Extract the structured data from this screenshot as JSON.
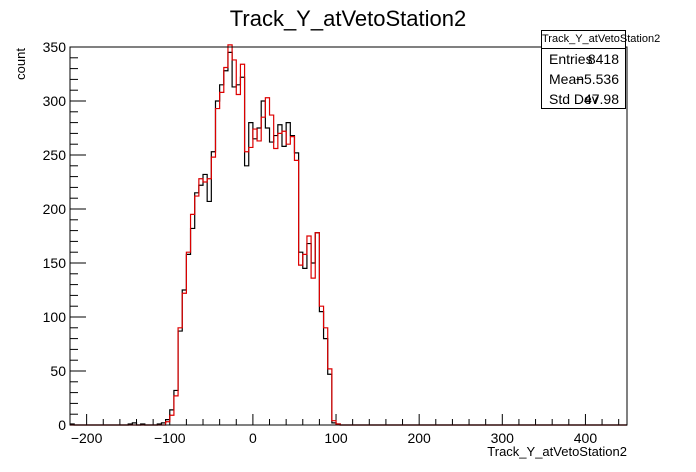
{
  "chart_data": {
    "type": "histogram",
    "title": "Track_Y_atVetoStation2",
    "xlabel": "Track_Y_atVetoStation2",
    "ylabel": "count",
    "xlim": [
      -220,
      450
    ],
    "ylim": [
      0,
      350
    ],
    "xticks": [
      -200,
      -100,
      0,
      100,
      200,
      300,
      400
    ],
    "yticks": [
      0,
      50,
      100,
      150,
      200,
      250,
      300,
      350
    ],
    "bin_start": -220,
    "bin_width": 5,
    "grid": false,
    "legend": "none",
    "stats": {
      "title": "Track_Y_atVetoStation2",
      "rows": [
        {
          "label": "Entries",
          "value": "8418"
        },
        {
          "label": "Mean",
          "value": "−5.536"
        },
        {
          "label": "Std Dev",
          "value": "47.98"
        }
      ]
    },
    "series": [
      {
        "color": "#000000",
        "values": [
          1,
          0,
          0,
          0,
          0,
          0,
          0,
          0,
          0,
          0,
          0,
          0,
          0,
          0,
          1,
          2,
          0,
          1,
          0,
          0,
          0,
          1,
          2,
          5,
          14,
          32,
          87,
          125,
          158,
          182,
          215,
          222,
          232,
          207,
          253,
          300,
          315,
          328,
          345,
          313,
          315,
          322,
          240,
          280,
          265,
          275,
          300,
          275,
          262,
          268,
          278,
          258,
          280,
          268,
          252,
          160,
          145,
          168,
          150,
          178,
          105,
          80,
          47,
          2,
          1,
          0,
          0,
          0,
          0,
          0,
          0,
          0,
          0,
          0,
          0,
          0,
          0,
          0,
          0,
          0,
          0,
          0,
          0,
          0,
          0,
          0,
          0,
          0,
          0,
          0,
          0,
          0,
          0,
          0,
          0,
          0,
          0,
          0,
          0,
          0,
          0,
          0,
          0,
          0,
          0,
          0,
          0,
          0,
          0,
          0,
          0,
          0,
          0,
          0,
          0,
          0,
          0,
          0,
          0,
          0,
          0,
          0,
          0,
          0,
          0,
          0,
          0,
          0,
          0,
          0,
          0,
          0,
          0,
          0
        ]
      },
      {
        "color": "#dd0000",
        "values": [
          0,
          0,
          0,
          0,
          0,
          0,
          0,
          0,
          0,
          0,
          0,
          0,
          0,
          0,
          0,
          0,
          0,
          0,
          0,
          0,
          0,
          0,
          0,
          3,
          9,
          27,
          90,
          122,
          160,
          195,
          212,
          228,
          225,
          228,
          248,
          293,
          308,
          331,
          352,
          338,
          306,
          334,
          253,
          257,
          274,
          263,
          285,
          303,
          287,
          256,
          270,
          272,
          260,
          267,
          245,
          148,
          158,
          175,
          136,
          178,
          110,
          90,
          52,
          4,
          1,
          0,
          0,
          0,
          0,
          0,
          0,
          0,
          0,
          0,
          0,
          0,
          0,
          0,
          0,
          0,
          0,
          0,
          0,
          0,
          0,
          0,
          0,
          0,
          0,
          0,
          0,
          0,
          0,
          0,
          0,
          0,
          0,
          0,
          0,
          0,
          0,
          0,
          0,
          0,
          0,
          0,
          0,
          0,
          0,
          0,
          0,
          0,
          0,
          0,
          0,
          0,
          0,
          0,
          0,
          0,
          0,
          0,
          0,
          0,
          0,
          0,
          0,
          0,
          0,
          0,
          0,
          0,
          0,
          0
        ]
      }
    ]
  }
}
